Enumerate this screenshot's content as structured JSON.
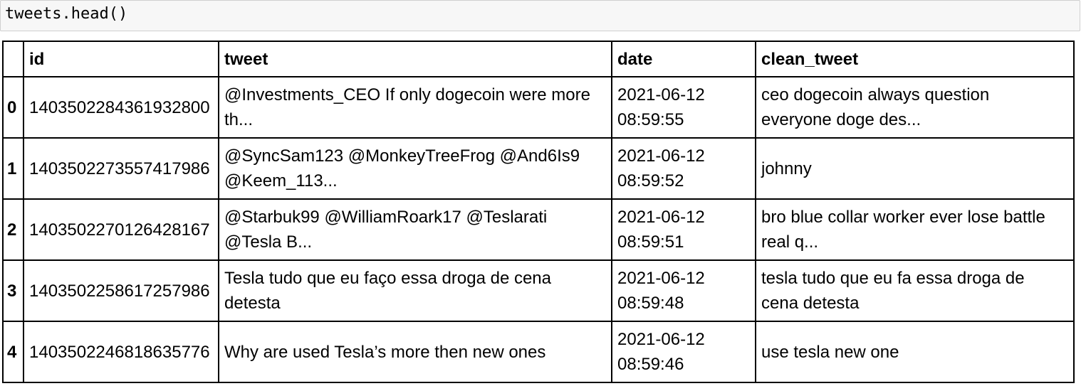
{
  "input_cell": {
    "code": "tweets.head()"
  },
  "dataframe": {
    "columns": [
      "",
      "id",
      "tweet",
      "date",
      "clean_tweet"
    ],
    "rows": [
      {
        "index": "0",
        "id": "1403502284361932800",
        "tweet_line1": "@Investments_CEO If only dogecoin were more",
        "tweet_line2": "th...",
        "date_line1": "2021-06-12",
        "date_line2": "08:59:55",
        "clean_line1": "ceo dogecoin always question",
        "clean_line2": "everyone doge des..."
      },
      {
        "index": "1",
        "id": "1403502273557417986",
        "tweet_line1": "@SyncSam123 @MonkeyTreeFrog @And6Is9",
        "tweet_line2": "@Keem_113...",
        "date_line1": "2021-06-12",
        "date_line2": "08:59:52",
        "clean_line1": "johnny",
        "clean_line2": ""
      },
      {
        "index": "2",
        "id": "1403502270126428167",
        "tweet_line1": "@Starbuk99 @WilliamRoark17 @Teslarati",
        "tweet_line2": "@Tesla B...",
        "date_line1": "2021-06-12",
        "date_line2": "08:59:51",
        "clean_line1": "bro blue collar worker ever lose battle",
        "clean_line2": "real q..."
      },
      {
        "index": "3",
        "id": "1403502258617257986",
        "tweet_line1": "Tesla tudo que eu faço essa droga de cena",
        "tweet_line2": "detesta",
        "date_line1": "2021-06-12",
        "date_line2": "08:59:48",
        "clean_line1": "tesla tudo que eu fa essa droga de",
        "clean_line2": "cena detesta"
      },
      {
        "index": "4",
        "id": "1403502246818635776",
        "tweet_line1": "Why are used Tesla’s more then new ones",
        "tweet_line2": "",
        "date_line1": "2021-06-12",
        "date_line2": "08:59:46",
        "clean_line1": "use tesla new one",
        "clean_line2": ""
      }
    ]
  }
}
